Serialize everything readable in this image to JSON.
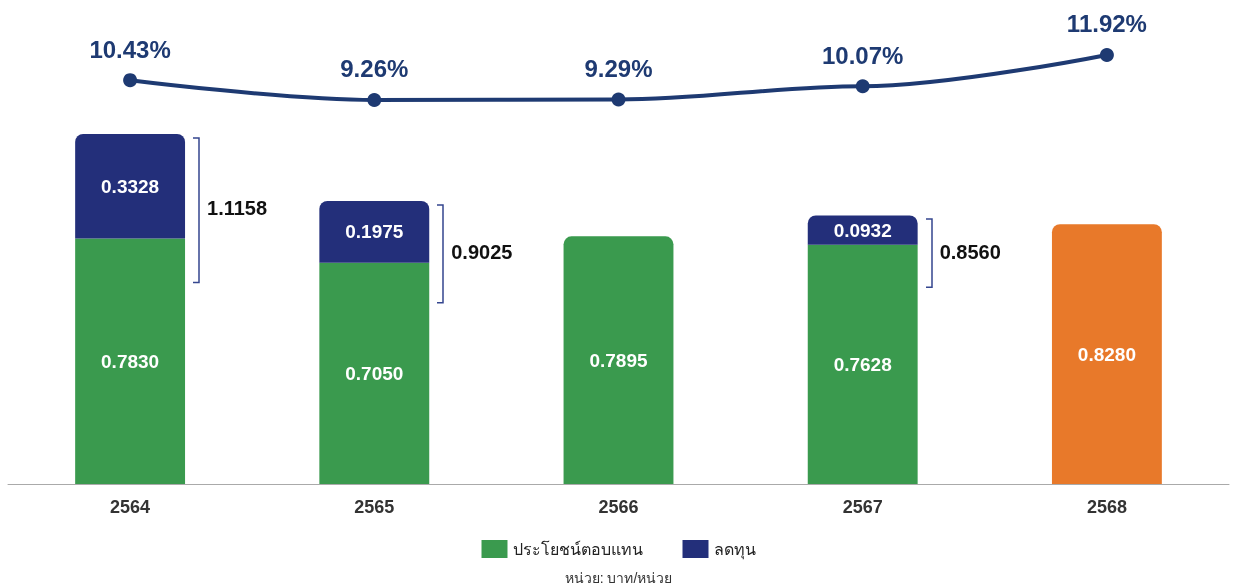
{
  "chart_data": [
    {
      "type": "line",
      "categories": [
        "2564",
        "2565",
        "2566",
        "2567",
        "2568"
      ],
      "tick_labels": false,
      "marker": "circle",
      "grid": false,
      "series": [
        {
          "color": "#1e3a72",
          "values": [
            10.43,
            9.26,
            9.29,
            10.07,
            11.92
          ],
          "value_labels": [
            "10.43%",
            "9.26%",
            "9.29%",
            "10.07%",
            "11.92%"
          ]
        }
      ]
    },
    {
      "type": "bar",
      "stacked": true,
      "categories": [
        "2564",
        "2565",
        "2566",
        "2567",
        "2568"
      ],
      "series": [
        {
          "name": "ประโยชน์ตอบแทน",
          "color": "#3a9a4e",
          "colors": [
            "#3a9a4e",
            "#3a9a4e",
            "#3a9a4e",
            "#3a9a4e",
            "#e8792a"
          ],
          "values": [
            0.783,
            0.705,
            0.7895,
            0.7628,
            0.828
          ],
          "value_labels": [
            "0.7830",
            "0.7050",
            "0.7895",
            "0.7628",
            "0.8280"
          ]
        },
        {
          "name": "ลดทุน",
          "color": "#232f7a",
          "values": [
            0.3328,
            0.1975,
            null,
            0.0932,
            null
          ],
          "value_labels": [
            "0.3328",
            "0.1975",
            null,
            "0.0932",
            null
          ]
        }
      ],
      "totals": [
        "1.1158",
        "0.9025",
        null,
        "0.8560",
        null
      ],
      "tick_labels": "x",
      "grid": false,
      "legend": "bottom",
      "annotations": [
        "หน่วย: บาท/หน่วย"
      ]
    }
  ]
}
